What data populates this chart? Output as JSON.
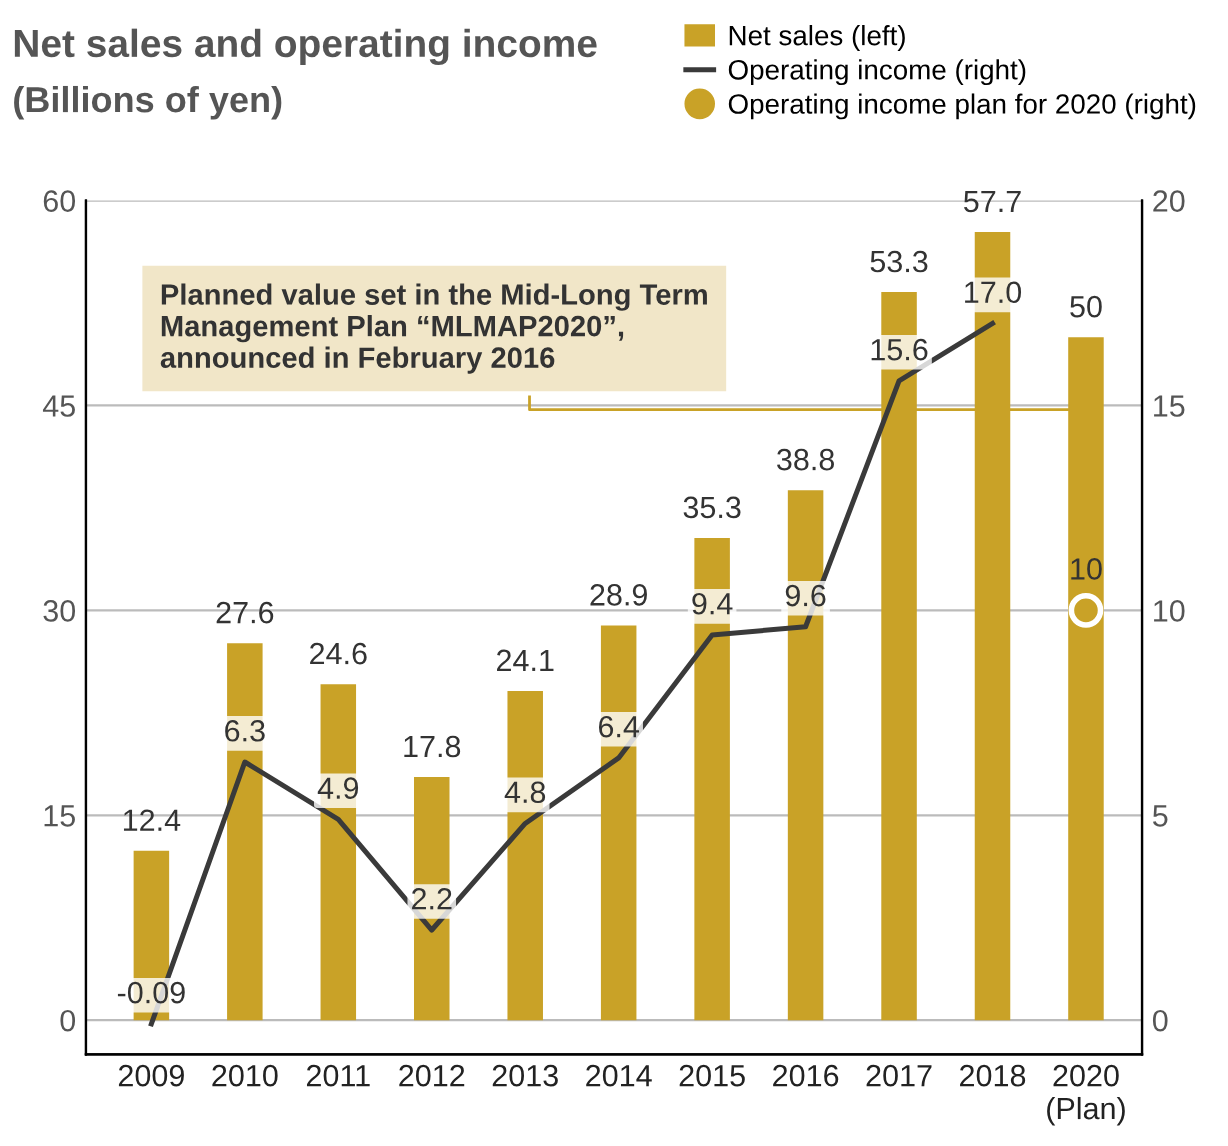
{
  "chart_data": {
    "type": "bar",
    "title": "Net sales and operating income",
    "subtitle": "(Billions of yen)",
    "categories": [
      "2009",
      "2010",
      "2011",
      "2012",
      "2013",
      "2014",
      "2015",
      "2016",
      "2017",
      "2018",
      "2020\n(Plan)"
    ],
    "series": [
      {
        "name": "Net sales (left)",
        "color": "#c9a227",
        "values": [
          12.4,
          27.6,
          24.6,
          17.8,
          24.1,
          28.9,
          35.3,
          38.8,
          53.3,
          57.7,
          50
        ],
        "value_labels": [
          "12.4",
          "27.6",
          "24.6",
          "17.8",
          "24.1",
          "28.9",
          "35.3",
          "38.8",
          "53.3",
          "57.7",
          "50"
        ]
      },
      {
        "name": "Operating income (right)",
        "type": "line",
        "axis": "y2",
        "color": "#3a3a3a",
        "values": [
          -0.09,
          6.3,
          4.9,
          2.2,
          4.8,
          6.4,
          9.4,
          9.6,
          15.6,
          17.0,
          null
        ],
        "value_labels": [
          "-0.09",
          "6.3",
          "4.9",
          "2.2",
          "4.8",
          "6.4",
          "9.4",
          "9.6",
          "15.6",
          "17.0",
          null
        ]
      },
      {
        "name": "Operating income plan for 2020 (right)",
        "type": "scatter",
        "axis": "y2",
        "color": "#c9a227",
        "marker": "circle",
        "values": [
          null,
          null,
          null,
          null,
          null,
          null,
          null,
          null,
          null,
          null,
          10
        ],
        "value_labels": [
          null,
          null,
          null,
          null,
          null,
          null,
          null,
          null,
          null,
          null,
          "10"
        ]
      }
    ],
    "ylim": [
      -2.5,
      60
    ],
    "yticks": [
      0,
      15,
      30,
      45,
      60
    ],
    "y2lim": [
      -0.833,
      20
    ],
    "y2ticks": [
      0,
      5,
      10,
      15,
      20
    ],
    "grid": "y",
    "legend": "top right",
    "line_style": "solid",
    "annotations": [
      "Planned value set in the Mid-Long Term\nManagement Plan “MLMAP2020”,\nannounced in February 2016"
    ]
  }
}
